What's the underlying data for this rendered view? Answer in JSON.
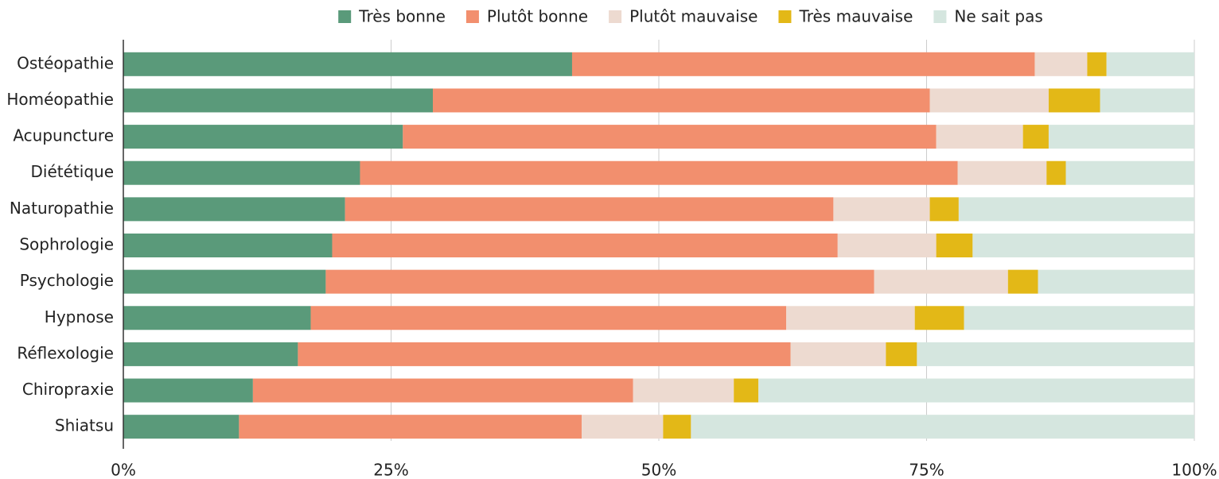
{
  "chart_data": {
    "type": "stacked_barh",
    "categories": [
      "Ostéopathie",
      "Homéopathie",
      "Acupuncture",
      "Diététique",
      "Naturopathie",
      "Sophrologie",
      "Psychologie",
      "Hypnose",
      "Réflexologie",
      "Chiropraxie",
      "Shiatsu"
    ],
    "series": [
      {
        "name": "Très bonne",
        "color": "#5a9a7a",
        "values": [
          41.9,
          28.9,
          26.1,
          22.1,
          20.7,
          19.5,
          18.9,
          17.5,
          16.3,
          12.1,
          10.8
        ]
      },
      {
        "name": "Plutôt bonne",
        "color": "#f28f6e",
        "values": [
          43.2,
          46.4,
          49.8,
          55.8,
          45.6,
          47.2,
          51.2,
          44.4,
          46.0,
          35.5,
          32.0
        ]
      },
      {
        "name": "Plutôt mauvaise",
        "color": "#eddad0",
        "values": [
          4.9,
          11.1,
          8.1,
          8.3,
          9.0,
          9.2,
          12.5,
          12.0,
          8.9,
          9.4,
          7.6
        ]
      },
      {
        "name": "Très mauvaise",
        "color": "#e3b817",
        "values": [
          1.8,
          4.8,
          2.4,
          1.8,
          2.7,
          3.4,
          2.8,
          4.6,
          2.9,
          2.3,
          2.6
        ]
      },
      {
        "name": "Ne sait pas",
        "color": "#d5e6df",
        "values": [
          8.2,
          8.8,
          13.6,
          12.0,
          22.0,
          20.7,
          14.6,
          21.5,
          25.9,
          40.7,
          47.0
        ]
      }
    ],
    "xlim": [
      0,
      100
    ],
    "xticks": [
      {
        "value": 0,
        "label": "0%"
      },
      {
        "value": 25,
        "label": "25%"
      },
      {
        "value": 50,
        "label": "50%"
      },
      {
        "value": 75,
        "label": "75%"
      },
      {
        "value": 100,
        "label": "100%"
      }
    ],
    "grid": true,
    "legend": "top"
  }
}
